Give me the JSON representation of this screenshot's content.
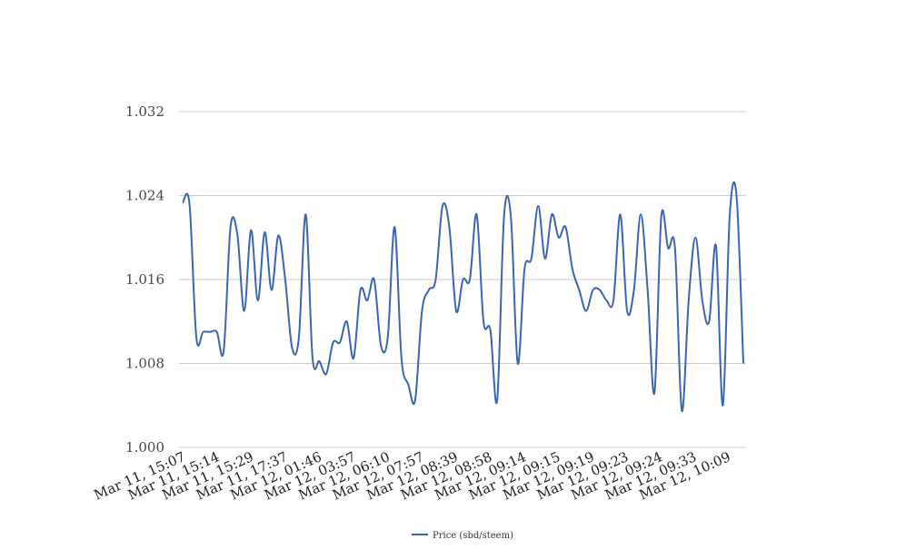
{
  "chart_data": {
    "type": "line",
    "title": "",
    "xlabel": "",
    "ylabel": "",
    "ylim": [
      1.0,
      1.032
    ],
    "y_ticks": [
      "1.000",
      "1.008",
      "1.016",
      "1.024",
      "1.032"
    ],
    "y_tick_values": [
      1.0,
      1.008,
      1.016,
      1.024,
      1.032
    ],
    "x_tick_labels": [
      "Mar 11, 15:07",
      "Mar 11, 15:14",
      "Mar 11, 15:29",
      "Mar 11, 17:37",
      "Mar 12, 01:46",
      "Mar 12, 03:57",
      "Mar 12, 06:10",
      "Mar 12, 07:57",
      "Mar 12, 08:39",
      "Mar 12, 08:58",
      "Mar 12, 09:14",
      "Mar 12, 09:15",
      "Mar 12, 09:19",
      "Mar 12, 09:23",
      "Mar 12, 09:24",
      "Mar 12, 09:33",
      "Mar 12, 10:09"
    ],
    "grid": true,
    "legend_position": "bottom-center",
    "series": [
      {
        "name": "Price (sbd/steem)",
        "color": "#3a65b5",
        "values": [
          1.0233,
          1.0232,
          1.0105,
          1.011,
          1.011,
          1.011,
          1.0092,
          1.021,
          1.0203,
          1.013,
          1.0207,
          1.014,
          1.0205,
          1.015,
          1.0202,
          1.016,
          1.0095,
          1.0105,
          1.0222,
          1.0085,
          1.0082,
          1.007,
          1.01,
          1.01,
          1.012,
          1.0085,
          1.015,
          1.014,
          1.016,
          1.0097,
          1.0105,
          1.021,
          1.0085,
          1.006,
          1.0045,
          1.013,
          1.015,
          1.016,
          1.023,
          1.021,
          1.013,
          1.016,
          1.016,
          1.0222,
          1.012,
          1.0112,
          1.0045,
          1.022,
          1.022,
          1.008,
          1.017,
          1.018,
          1.023,
          1.018,
          1.0222,
          1.02,
          1.021,
          1.017,
          1.015,
          1.013,
          1.015,
          1.015,
          1.014,
          1.014,
          1.0222,
          1.013,
          1.015,
          1.0222,
          1.015,
          1.0052,
          1.022,
          1.019,
          1.019,
          1.0035,
          1.014,
          1.02,
          1.014,
          1.012,
          1.0192,
          1.004,
          1.022,
          1.024,
          1.008
        ]
      }
    ]
  }
}
